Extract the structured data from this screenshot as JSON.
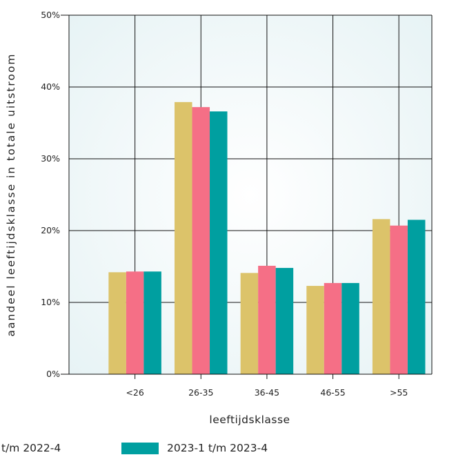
{
  "chart_data": {
    "type": "bar",
    "xlabel": "leeftijdsklasse",
    "ylabel": "aandeel leeftijdsklasse in totale uitstroom",
    "categories": [
      "<26",
      "26-35",
      "36-45",
      "46-55",
      ">55"
    ],
    "yticks": [
      "0%",
      "10%",
      "20%",
      "30%",
      "40%",
      "50%"
    ],
    "ylim": [
      0,
      50
    ],
    "grid": true,
    "legend_position": "bottom",
    "series": [
      {
        "name": "",
        "color": "#dcc36a",
        "values": [
          14.2,
          37.9,
          14.1,
          12.3,
          21.6
        ]
      },
      {
        "name": "",
        "color": "#f56f86",
        "values": [
          14.3,
          37.2,
          15.1,
          12.7,
          20.7
        ]
      },
      {
        "name": "2023-1 t/m 2023-4",
        "color": "#009fa0",
        "values": [
          14.3,
          36.6,
          14.8,
          12.7,
          21.5
        ]
      }
    ]
  },
  "legend": {
    "items": [
      {
        "label": "t/m 2022-4",
        "color": "#dcc36a"
      },
      {
        "label": "2023-1 t/m 2023-4",
        "color": "#009fa0"
      }
    ]
  }
}
